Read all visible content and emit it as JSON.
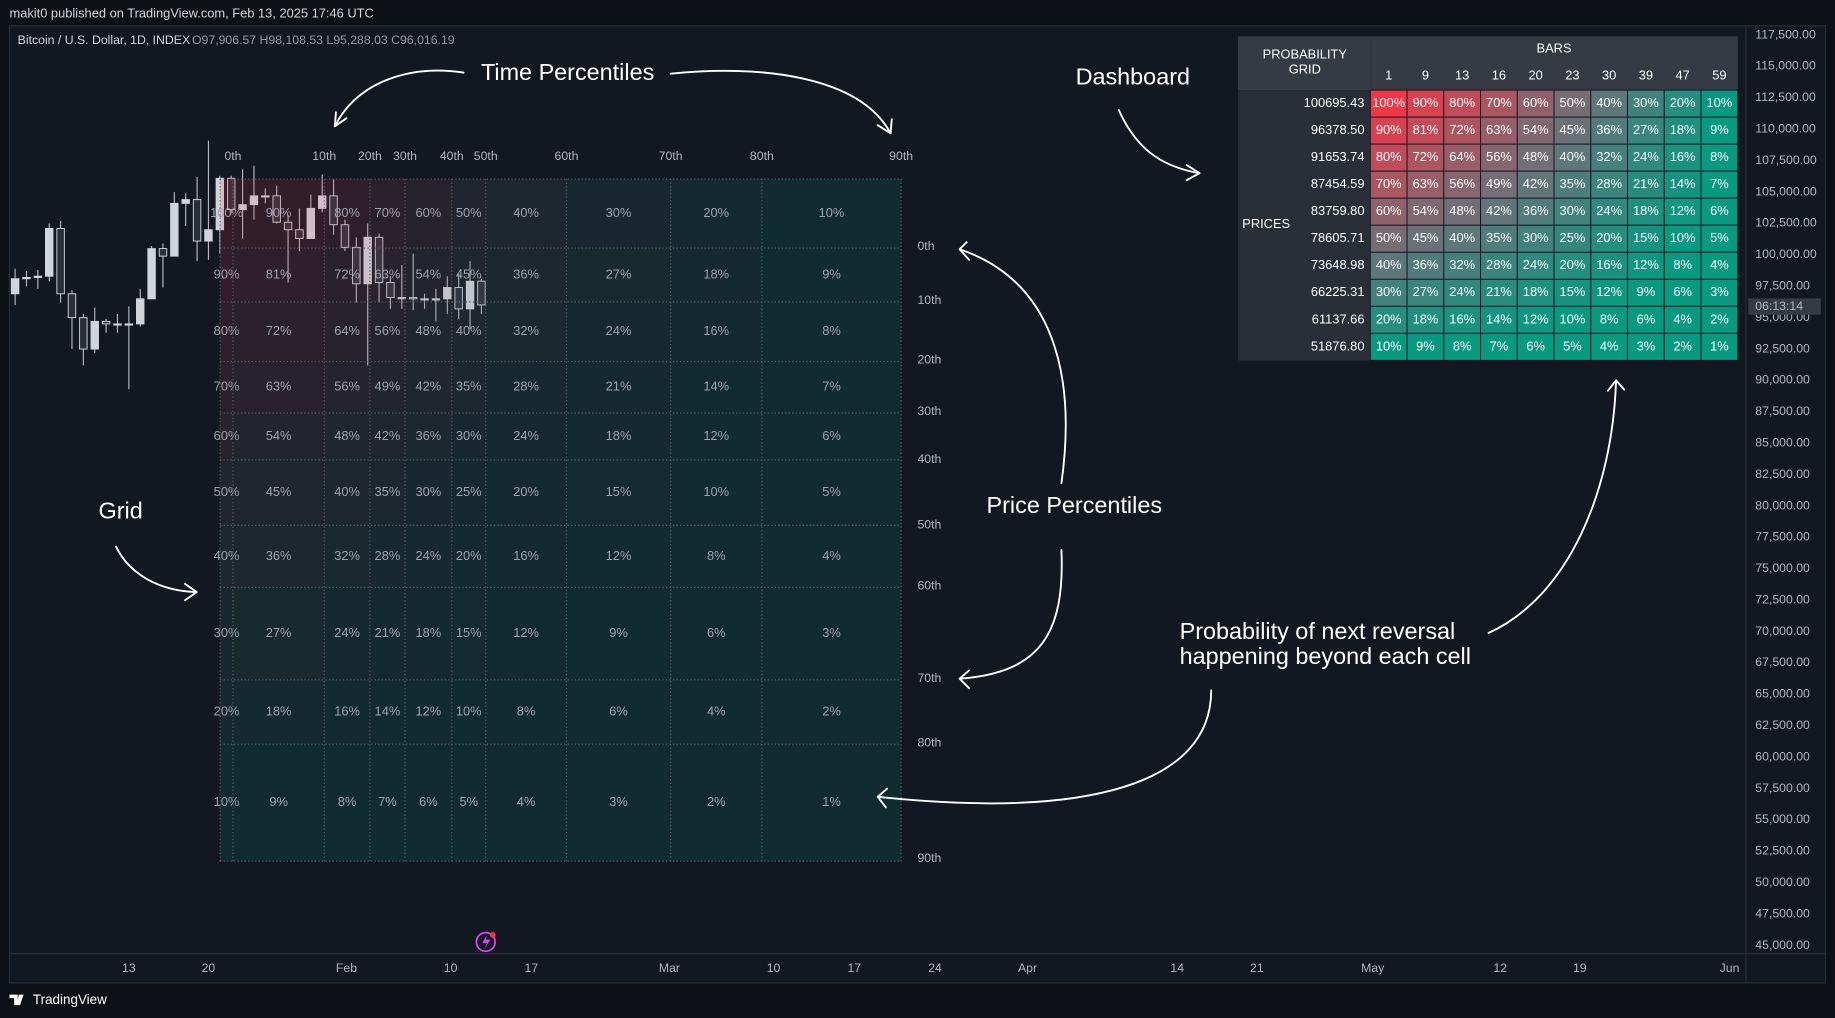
{
  "header": {
    "published": "makit0 published on TradingView.com, Feb 13, 2025 17:46 UTC"
  },
  "symbol": {
    "name": "Bitcoin / U.S. Dollar, 1D, INDEX",
    "ohlc": "O97,906.57 H98,108.53 L95,288.03 C96,016.19"
  },
  "annotations": {
    "time": "Time Percentiles",
    "dashboard": "Dashboard",
    "grid": "Grid",
    "price": "Price Percentiles",
    "reversal": [
      "Probability of next reversal",
      "happening beyond each cell"
    ]
  },
  "overlay": {
    "percentiles": [
      "0th",
      "10th",
      "20th",
      "30th",
      "40th",
      "50th",
      "60th",
      "70th",
      "80th",
      "90th"
    ]
  },
  "dashboard": {
    "title": [
      "PROBABILITY",
      "GRID"
    ],
    "bars_label": "BARS",
    "prices_label": "PRICES",
    "bars": [
      "1",
      "9",
      "13",
      "16",
      "20",
      "23",
      "30",
      "39",
      "47",
      "59"
    ],
    "prices": [
      "100695.43",
      "96378.50",
      "91653.74",
      "87454.59",
      "83759.80",
      "78605.71",
      "73648.98",
      "66225.31",
      "61137.66",
      "51876.80"
    ],
    "cells": [
      [
        "100%",
        "90%",
        "80%",
        "70%",
        "60%",
        "50%",
        "40%",
        "30%",
        "20%",
        "10%"
      ],
      [
        "90%",
        "81%",
        "72%",
        "63%",
        "54%",
        "45%",
        "36%",
        "27%",
        "18%",
        "9%"
      ],
      [
        "80%",
        "72%",
        "64%",
        "56%",
        "48%",
        "40%",
        "32%",
        "24%",
        "16%",
        "8%"
      ],
      [
        "70%",
        "63%",
        "56%",
        "49%",
        "42%",
        "35%",
        "28%",
        "21%",
        "14%",
        "7%"
      ],
      [
        "60%",
        "54%",
        "48%",
        "42%",
        "36%",
        "30%",
        "24%",
        "18%",
        "12%",
        "6%"
      ],
      [
        "50%",
        "45%",
        "40%",
        "35%",
        "30%",
        "25%",
        "20%",
        "15%",
        "10%",
        "5%"
      ],
      [
        "40%",
        "36%",
        "32%",
        "28%",
        "24%",
        "20%",
        "16%",
        "12%",
        "8%",
        "4%"
      ],
      [
        "30%",
        "27%",
        "24%",
        "21%",
        "18%",
        "15%",
        "12%",
        "9%",
        "6%",
        "3%"
      ],
      [
        "20%",
        "18%",
        "16%",
        "14%",
        "12%",
        "10%",
        "8%",
        "6%",
        "4%",
        "2%"
      ],
      [
        "10%",
        "9%",
        "8%",
        "7%",
        "6%",
        "5%",
        "4%",
        "3%",
        "2%",
        "1%"
      ]
    ]
  },
  "price_axis": {
    "labels": [
      "117,500.00",
      "115,000.00",
      "112,500.00",
      "110,000.00",
      "107,500.00",
      "105,000.00",
      "102,500.00",
      "100,000.00",
      "97,500.00",
      "95,000.00",
      "92,500.00",
      "90,000.00",
      "87,500.00",
      "85,000.00",
      "82,500.00",
      "80,000.00",
      "77,500.00",
      "75,000.00",
      "72,500.00",
      "70,000.00",
      "67,500.00",
      "65,000.00",
      "62,500.00",
      "60,000.00",
      "57,500.00",
      "55,000.00",
      "52,500.00",
      "50,000.00",
      "47,500.00",
      "45,000.00"
    ],
    "countdown": "06:13:14"
  },
  "time_axis": {
    "labels": [
      "13",
      "20",
      "Feb",
      "10",
      "17",
      "Mar",
      "10",
      "17",
      "24",
      "Apr",
      "14",
      "21",
      "May",
      "12",
      "19",
      "Jun"
    ]
  },
  "candles": {
    "open": [
      96900,
      98100,
      98200,
      98300,
      102100,
      96900,
      95000,
      92500,
      94700,
      94500,
      94500,
      94500,
      96500,
      100500,
      99900,
      104100,
      104400,
      101100,
      102000,
      106100,
      103600,
      104000,
      104700,
      104700,
      102600,
      102000,
      101300,
      103700,
      104700,
      102400,
      100600,
      97700,
      101400,
      97800,
      96600,
      96600,
      96500,
      96500,
      96500,
      97400,
      95700,
      97906.57
    ],
    "high": [
      98900,
      98700,
      98800,
      102500,
      102700,
      97200,
      95300,
      95800,
      94900,
      95300,
      95900,
      97300,
      100700,
      100900,
      105000,
      104900,
      106200,
      109100,
      106300,
      106300,
      106800,
      107100,
      105300,
      105500,
      103200,
      103700,
      104800,
      106400,
      106000,
      102800,
      101400,
      102500,
      101700,
      98300,
      99200,
      100100,
      96900,
      97300,
      98300,
      98500,
      99500,
      98108.53
    ],
    "low": [
      96000,
      97500,
      97300,
      97900,
      96200,
      92500,
      91200,
      92200,
      93800,
      93800,
      89300,
      94300,
      96500,
      97400,
      99900,
      102300,
      99500,
      99600,
      100100,
      103300,
      101300,
      102800,
      104100,
      102500,
      97800,
      100300,
      101300,
      103400,
      101600,
      100300,
      96200,
      91200,
      96200,
      95700,
      95700,
      95600,
      95700,
      94700,
      95300,
      94900,
      94100,
      95288.03
    ],
    "close": [
      98100,
      98200,
      98300,
      102100,
      96900,
      95000,
      92500,
      94700,
      94500,
      94500,
      94500,
      96500,
      100500,
      99900,
      104100,
      104400,
      101100,
      102000,
      106100,
      103600,
      104000,
      104700,
      104700,
      102600,
      102000,
      101300,
      103700,
      104700,
      102400,
      100600,
      97700,
      101400,
      97800,
      96600,
      96600,
      96500,
      96500,
      96500,
      97400,
      95700,
      97900,
      96016.19
    ]
  },
  "footer": {
    "brand": "TradingView"
  }
}
